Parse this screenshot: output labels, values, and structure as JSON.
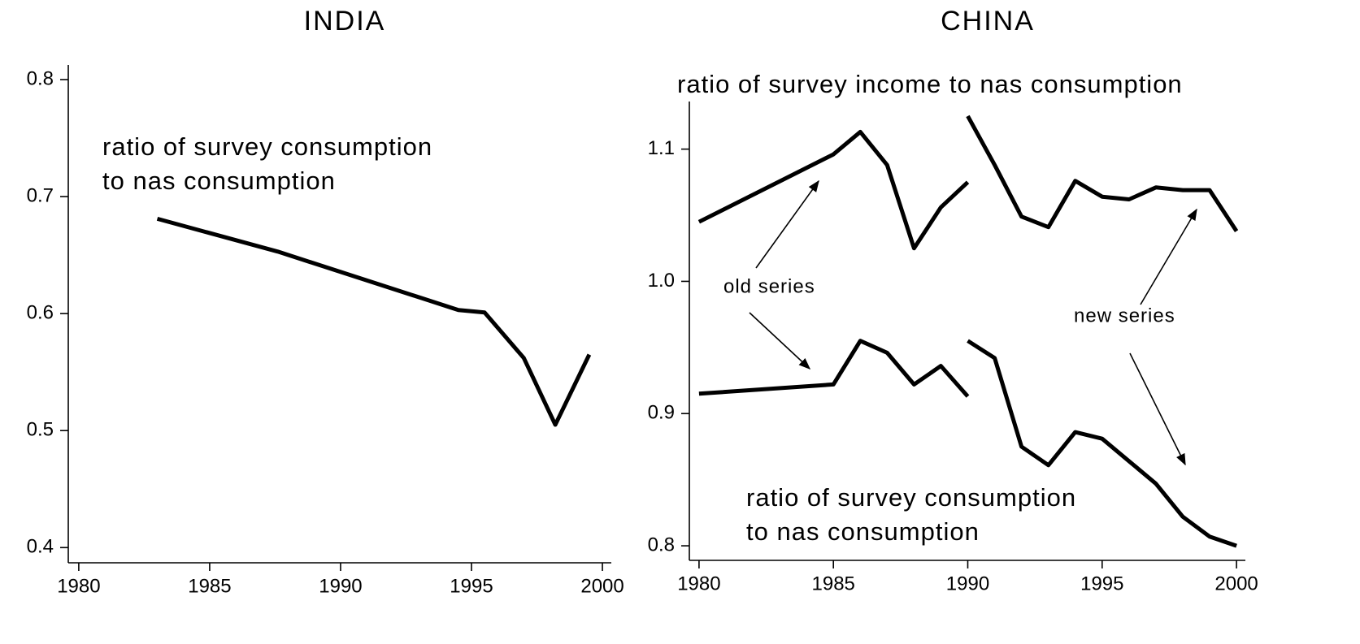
{
  "chart_data": [
    {
      "type": "line",
      "title": "INDIA",
      "annotations": [
        "ratio of survey consumption",
        "to nas consumption"
      ],
      "xlim": [
        1979.6,
        2000.34
      ],
      "xticks": [
        1980,
        1985,
        1990,
        1995,
        2000
      ],
      "ylim": [
        0.387,
        0.8125
      ],
      "yticks": [
        0.4,
        0.5,
        0.6,
        0.7,
        0.8
      ],
      "series": [
        {
          "color": "#000000",
          "x": [
            1983,
            1987.6,
            1993.4,
            1994.5,
            1995.5,
            1997,
            1998.2,
            1999.5
          ],
          "values": [
            0.681,
            0.653,
            0.611,
            0.603,
            0.601,
            0.562,
            0.505,
            0.565
          ]
        }
      ]
    },
    {
      "type": "line",
      "title": "CHINA",
      "annotations": [
        "ratio of survey income to nas consumption",
        "old series",
        "new series",
        "ratio of survey consumption",
        "to nas consumption"
      ],
      "xlim": [
        1979.64,
        2000.33
      ],
      "xticks": [
        1980,
        1985,
        1990,
        1995,
        2000
      ],
      "ylim": [
        0.789,
        1.136
      ],
      "yticks": [
        0.8,
        0.9,
        {
          "value": 1,
          "label": "1.0"
        },
        1.1
      ],
      "series": [
        {
          "color": "#000000",
          "x": [
            1980,
            1985,
            1986,
            1987,
            1988,
            1989,
            1990
          ],
          "values": [
            1.045,
            1.096,
            1.113,
            1.088,
            1.025,
            1.056,
            1.075
          ]
        },
        {
          "color": "#000000",
          "x": [
            1990,
            1991,
            1992,
            1993,
            1994,
            1995,
            1996,
            1997,
            1998,
            1999,
            2000
          ],
          "values": [
            1.125,
            1.088,
            1.049,
            1.041,
            1.076,
            1.064,
            1.062,
            1.071,
            1.069,
            1.069,
            1.038
          ]
        },
        {
          "color": "#000000",
          "x": [
            1980,
            1985,
            1986,
            1987,
            1988,
            1989,
            1990
          ],
          "values": [
            0.915,
            0.922,
            0.955,
            0.946,
            0.922,
            0.936,
            0.913
          ]
        },
        {
          "color": "#000000",
          "x": [
            1990,
            1991,
            1992,
            1993,
            1994,
            1995,
            1996,
            1997,
            1998,
            1999,
            2000
          ],
          "values": [
            0.955,
            0.942,
            0.875,
            0.861,
            0.886,
            0.881,
            0.864,
            0.847,
            0.822,
            0.807,
            0.8
          ]
        }
      ]
    }
  ]
}
